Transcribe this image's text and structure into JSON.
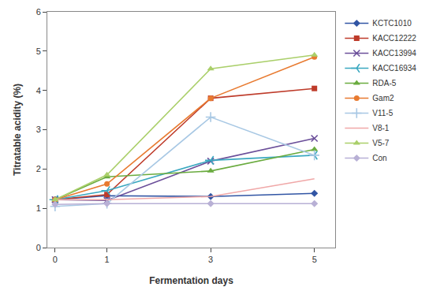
{
  "chart_data": {
    "type": "line",
    "x_label": "Fermentation days",
    "y_label": "Titratable acidity (%)",
    "x": [
      0,
      1,
      3,
      5
    ],
    "series": [
      {
        "name": "KCTC1010",
        "color": "#3155A4",
        "marker": "diamond",
        "values": [
          1.22,
          1.32,
          1.3,
          1.38
        ]
      },
      {
        "name": "KACC12222",
        "color": "#BE3B2A",
        "marker": "square",
        "values": [
          1.22,
          1.35,
          3.8,
          4.05
        ]
      },
      {
        "name": "KACC13994",
        "color": "#6B4F9A",
        "marker": "x",
        "values": [
          1.22,
          1.2,
          2.2,
          2.78
        ]
      },
      {
        "name": "KACC16934",
        "color": "#3AA8C0",
        "marker": "tri_left",
        "values": [
          1.22,
          1.45,
          2.22,
          2.35
        ]
      },
      {
        "name": "RDA-5",
        "color": "#6AAB3F",
        "marker": "triangle",
        "values": [
          1.22,
          1.8,
          1.95,
          2.5
        ]
      },
      {
        "name": "Gam2",
        "color": "#E87A30",
        "marker": "circle",
        "values": [
          1.22,
          1.62,
          3.8,
          4.85
        ]
      },
      {
        "name": "V11-5",
        "color": "#A8C8E4",
        "marker": "plus",
        "values": [
          1.05,
          1.12,
          3.32,
          2.35
        ]
      },
      {
        "name": "V8-1",
        "color": "#F0A8A8",
        "marker": "none",
        "values": [
          1.22,
          1.22,
          1.3,
          1.75
        ]
      },
      {
        "name": "V5-7",
        "color": "#AACF6A",
        "marker": "triangle",
        "values": [
          1.22,
          1.85,
          4.55,
          4.9
        ]
      },
      {
        "name": "Con",
        "color": "#B8B0D5",
        "marker": "diamond",
        "values": [
          1.1,
          1.12,
          1.12,
          1.12
        ]
      }
    ],
    "line_style": "solid",
    "xlim": [
      -0.15,
      5.4
    ],
    "xticks": [
      0,
      1,
      3,
      5
    ],
    "ylim": [
      0,
      6
    ],
    "yticks": [
      0,
      1,
      2,
      3,
      4,
      5,
      6
    ],
    "grid": false,
    "legend": "right"
  }
}
